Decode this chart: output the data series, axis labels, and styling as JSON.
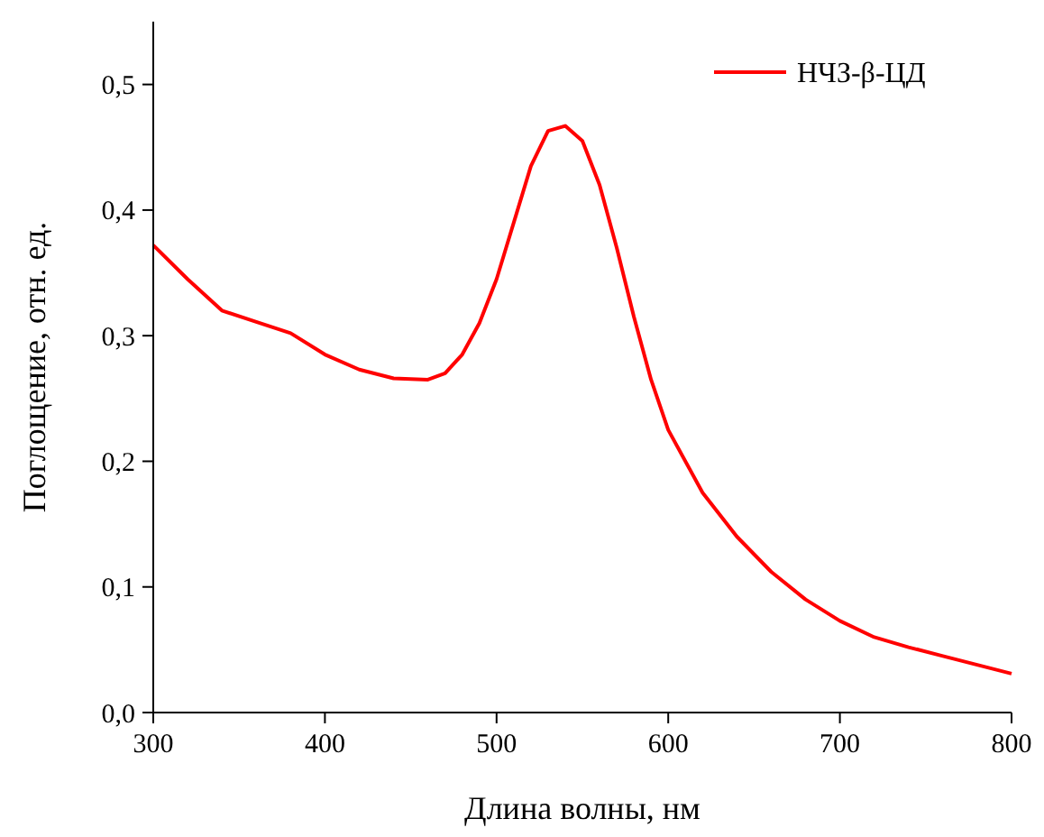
{
  "chart_data": {
    "type": "line",
    "xlabel": "Длина волны, нм",
    "ylabel": "Поглощение, отн. ед.",
    "x": [
      300,
      320,
      340,
      360,
      380,
      400,
      420,
      440,
      460,
      470,
      480,
      490,
      500,
      510,
      520,
      530,
      540,
      550,
      560,
      570,
      580,
      590,
      600,
      620,
      640,
      660,
      680,
      700,
      720,
      740,
      760,
      780,
      800
    ],
    "series": [
      {
        "name": "НЧЗ-β-ЦД",
        "color": "#ff0000",
        "values": [
          0.372,
          0.345,
          0.32,
          0.311,
          0.302,
          0.285,
          0.273,
          0.266,
          0.265,
          0.27,
          0.285,
          0.31,
          0.345,
          0.39,
          0.435,
          0.463,
          0.467,
          0.455,
          0.42,
          0.37,
          0.315,
          0.265,
          0.225,
          0.175,
          0.14,
          0.112,
          0.09,
          0.073,
          0.06,
          0.052,
          0.045,
          0.038,
          0.031
        ]
      }
    ],
    "xlim": [
      300,
      800
    ],
    "xticks": [
      300,
      400,
      500,
      600,
      700,
      800
    ],
    "ylim": [
      0,
      0.55
    ],
    "yticks": [
      {
        "value": 0,
        "label": "0,0"
      },
      {
        "value": 0.1,
        "label": "0,1"
      },
      {
        "value": 0.2,
        "label": "0,2"
      },
      {
        "value": 0.3,
        "label": "0,3"
      },
      {
        "value": 0.4,
        "label": "0,4"
      },
      {
        "value": 0.5,
        "label": "0,5"
      }
    ],
    "legend": "top right",
    "grid": false,
    "line_style": "solid",
    "marker": "none"
  }
}
